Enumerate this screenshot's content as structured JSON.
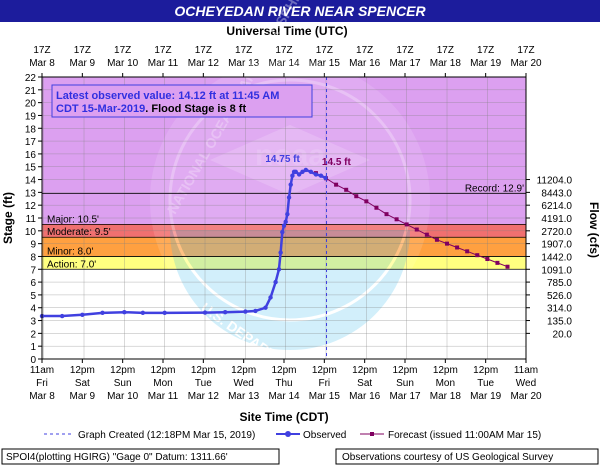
{
  "header": {
    "title": "OCHEYEDAN RIVER NEAR SPENCER",
    "top_axis_title": "Universal Time (UTC)"
  },
  "colors": {
    "title_bar": "#1c1c9c",
    "plot_bg": "#dca0f0",
    "record_band": "#e088f0",
    "major_band": "#d080d8",
    "moderate_band": "#f07070",
    "minor_band": "#ffa040",
    "action_band": "#ffff80",
    "normal_band": "#ffffff",
    "observed": "#4040e0",
    "forecast": "#800060",
    "annotation_box_border": "#4040e0"
  },
  "chart_data": {
    "type": "line",
    "title": "OCHEYEDAN RIVER NEAR SPENCER",
    "xlabel": "Site Time (CDT)",
    "ylabel_left": "Stage (ft)",
    "ylabel_right": "Flow (cfs)",
    "top_xlabel": "Universal Time (UTC)",
    "ylim": [
      0,
      22
    ],
    "xlim": [
      "2019-03-08 11:00",
      "2019-03-20 11:00"
    ],
    "grid": true,
    "y_ticks": [
      0,
      1,
      2,
      3,
      4,
      5,
      6,
      7,
      8,
      9,
      10,
      11,
      12,
      13,
      14,
      15,
      16,
      17,
      18,
      19,
      20,
      21,
      22
    ],
    "flow_ticks": [
      {
        "stage": 2,
        "label": "20.0"
      },
      {
        "stage": 3,
        "label": "135.0"
      },
      {
        "stage": 4,
        "label": "314.0"
      },
      {
        "stage": 5,
        "label": "526.0"
      },
      {
        "stage": 6,
        "label": "785.0"
      },
      {
        "stage": 7,
        "label": "1091.0"
      },
      {
        "stage": 8,
        "label": "1442.0"
      },
      {
        "stage": 9,
        "label": "1907.0"
      },
      {
        "stage": 10,
        "label": "2720.0"
      },
      {
        "stage": 11,
        "label": "4191.0"
      },
      {
        "stage": 12,
        "label": "6214.0"
      },
      {
        "stage": 13,
        "label": "8443.0"
      },
      {
        "stage": 14,
        "label": "11204.0"
      }
    ],
    "bottom_ticks": [
      [
        "11am",
        "Fri",
        "Mar 8"
      ],
      [
        "12pm",
        "Sat",
        "Mar 9"
      ],
      [
        "12pm",
        "Sun",
        "Mar 10"
      ],
      [
        "12pm",
        "Mon",
        "Mar 11"
      ],
      [
        "12pm",
        "Tue",
        "Mar 12"
      ],
      [
        "12pm",
        "Wed",
        "Mar 13"
      ],
      [
        "12pm",
        "Thu",
        "Mar 14"
      ],
      [
        "12pm",
        "Fri",
        "Mar 15"
      ],
      [
        "12pm",
        "Sat",
        "Mar 16"
      ],
      [
        "12pm",
        "Sun",
        "Mar 17"
      ],
      [
        "12pm",
        "Mon",
        "Mar 18"
      ],
      [
        "12pm",
        "Tue",
        "Mar 19"
      ],
      [
        "11am",
        "Wed",
        "Mar 20"
      ]
    ],
    "top_ticks": [
      [
        "17Z",
        "Mar  8"
      ],
      [
        "17Z",
        "Mar  9"
      ],
      [
        "17Z",
        "Mar 10"
      ],
      [
        "17Z",
        "Mar 11"
      ],
      [
        "17Z",
        "Mar 12"
      ],
      [
        "17Z",
        "Mar 13"
      ],
      [
        "17Z",
        "Mar 14"
      ],
      [
        "17Z",
        "Mar 15"
      ],
      [
        "17Z",
        "Mar 16"
      ],
      [
        "17Z",
        "Mar 17"
      ],
      [
        "17Z",
        "Mar 18"
      ],
      [
        "17Z",
        "Mar 19"
      ],
      [
        "17Z",
        "Mar 20"
      ]
    ],
    "flood_categories": [
      {
        "name": "Record",
        "label": "Record: 12.9'",
        "stage": 12.9
      },
      {
        "name": "Major",
        "label": "Major: 10.5'",
        "stage": 10.5
      },
      {
        "name": "Moderate",
        "label": "Moderate: 9.5'",
        "stage": 9.5
      },
      {
        "name": "Minor",
        "label": "Minor: 8.0'",
        "stage": 8.0
      },
      {
        "name": "Action",
        "label": "Action: 7.0'",
        "stage": 7.0
      }
    ],
    "created_time": "2019-03-15 12:18",
    "observed": {
      "name": "Observed",
      "points": [
        [
          "2019-03-08 11:00",
          3.35
        ],
        [
          "2019-03-08 23:00",
          3.35
        ],
        [
          "2019-03-09 11:00",
          3.45
        ],
        [
          "2019-03-09 23:00",
          3.6
        ],
        [
          "2019-03-10 12:00",
          3.65
        ],
        [
          "2019-03-10 23:00",
          3.6
        ],
        [
          "2019-03-11 12:00",
          3.6
        ],
        [
          "2019-03-12 12:00",
          3.62
        ],
        [
          "2019-03-13 00:00",
          3.65
        ],
        [
          "2019-03-13 12:00",
          3.7
        ],
        [
          "2019-03-13 18:00",
          3.75
        ],
        [
          "2019-03-14 00:00",
          4.0
        ],
        [
          "2019-03-14 03:00",
          4.8
        ],
        [
          "2019-03-14 06:00",
          6.0
        ],
        [
          "2019-03-14 08:00",
          7.0
        ],
        [
          "2019-03-14 09:00",
          8.3
        ],
        [
          "2019-03-14 10:00",
          9.9
        ],
        [
          "2019-03-14 11:00",
          10.4
        ],
        [
          "2019-03-14 12:00",
          10.7
        ],
        [
          "2019-03-14 13:00",
          11.3
        ],
        [
          "2019-03-14 14:00",
          12.6
        ],
        [
          "2019-03-14 15:00",
          13.6
        ],
        [
          "2019-03-14 16:00",
          14.3
        ],
        [
          "2019-03-14 17:00",
          14.6
        ],
        [
          "2019-03-14 18:00",
          14.6
        ],
        [
          "2019-03-14 20:00",
          14.4
        ],
        [
          "2019-03-14 22:00",
          14.6
        ],
        [
          "2019-03-15 00:00",
          14.75
        ],
        [
          "2019-03-15 03:00",
          14.6
        ],
        [
          "2019-03-15 06:00",
          14.4
        ],
        [
          "2019-03-15 09:00",
          14.3
        ],
        [
          "2019-03-15 11:45",
          14.12
        ]
      ],
      "peak_label": "14.75 ft",
      "peak_point": [
        "2019-03-15 00:00",
        14.75
      ]
    },
    "forecast": {
      "name": "Forecast",
      "points": [
        [
          "2019-03-15 06:00",
          14.5
        ],
        [
          "2019-03-15 12:00",
          14.1
        ],
        [
          "2019-03-15 18:00",
          13.6
        ],
        [
          "2019-03-16 00:00",
          13.2
        ],
        [
          "2019-03-16 06:00",
          12.7
        ],
        [
          "2019-03-16 12:00",
          12.3
        ],
        [
          "2019-03-16 18:00",
          11.8
        ],
        [
          "2019-03-17 00:00",
          11.3
        ],
        [
          "2019-03-17 06:00",
          10.9
        ],
        [
          "2019-03-17 12:00",
          10.5
        ],
        [
          "2019-03-17 18:00",
          10.1
        ],
        [
          "2019-03-18 00:00",
          9.7
        ],
        [
          "2019-03-18 06:00",
          9.3
        ],
        [
          "2019-03-18 12:00",
          9.0
        ],
        [
          "2019-03-18 18:00",
          8.7
        ],
        [
          "2019-03-19 00:00",
          8.4
        ],
        [
          "2019-03-19 06:00",
          8.1
        ],
        [
          "2019-03-19 12:00",
          7.8
        ],
        [
          "2019-03-19 18:00",
          7.5
        ],
        [
          "2019-03-20 00:00",
          7.2
        ]
      ],
      "peak_label": "14.5 ft",
      "peak_point": [
        "2019-03-15 06:00",
        14.5
      ]
    },
    "annotation": {
      "line1": "Latest observed value: 14.12 ft at 11:45 AM",
      "line2_date": "CDT 15-Mar-2019",
      "line2_rest": ". Flood Stage is 8 ft"
    }
  },
  "legend": {
    "graph_created": "Graph Created (12:18PM Mar 15, 2019)",
    "observed": "Observed",
    "forecast": "Forecast (issued 11:00AM Mar 15)"
  },
  "footer": {
    "left": "SPOI4(plotting HGIRG) \"Gage 0\" Datum: 1311.66'",
    "right": "Observations courtesy of US Geological Survey"
  }
}
